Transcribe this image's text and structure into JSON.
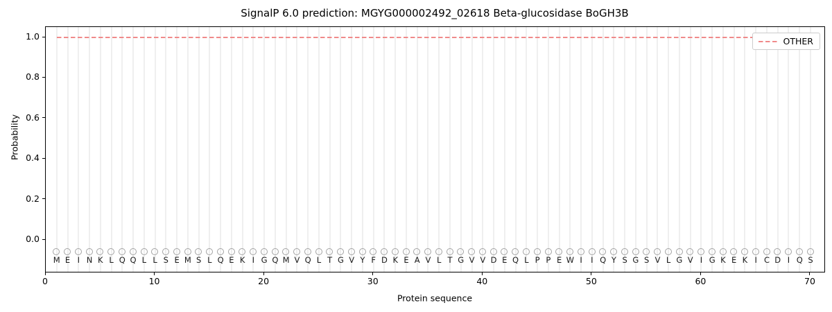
{
  "figure": {
    "title": "SignalP 6.0 prediction: MGYG000002492_02618 Beta-glucosidase BoGH3B"
  },
  "axes": {
    "x_label": "Protein sequence",
    "y_label": "Probability",
    "x_ticks": [
      "0",
      "10",
      "20",
      "30",
      "40",
      "50",
      "60",
      "70"
    ],
    "y_ticks": [
      "0.0",
      "0.2",
      "0.4",
      "0.6",
      "0.8",
      "1.0"
    ]
  },
  "legend": {
    "items": [
      {
        "label": "OTHER",
        "line_style": "dashed",
        "color": "#f08a8a"
      }
    ]
  },
  "colors": {
    "prediction_line": "#f08a8a",
    "gridline": "#efefef",
    "marker_stroke": "#a3a3a3",
    "spine": "#000000",
    "text": "#000000"
  },
  "chart_data": {
    "type": "line",
    "title": "SignalP 6.0 prediction: MGYG000002492_02618 Beta-glucosidase BoGH3B",
    "xlabel": "Protein sequence",
    "ylabel": "Probability",
    "xlim": [
      0,
      71.4
    ],
    "ylim": [
      -0.16,
      1.05
    ],
    "grid": "vertical gridline at each residue position",
    "legend_position": "upper right",
    "x": [
      1,
      2,
      3,
      4,
      5,
      6,
      7,
      8,
      9,
      10,
      11,
      12,
      13,
      14,
      15,
      16,
      17,
      18,
      19,
      20,
      21,
      22,
      23,
      24,
      25,
      26,
      27,
      28,
      29,
      30,
      31,
      32,
      33,
      34,
      35,
      36,
      37,
      38,
      39,
      40,
      41,
      42,
      43,
      44,
      45,
      46,
      47,
      48,
      49,
      50,
      51,
      52,
      53,
      54,
      55,
      56,
      57,
      58,
      59,
      60,
      61,
      62,
      63,
      64,
      65,
      66,
      67,
      68,
      69,
      70
    ],
    "series": [
      {
        "name": "OTHER",
        "linestyle": "dashed",
        "color": "#f08a8a",
        "values": [
          1.0,
          1.0,
          1.0,
          1.0,
          1.0,
          1.0,
          1.0,
          1.0,
          1.0,
          1.0,
          1.0,
          1.0,
          1.0,
          1.0,
          1.0,
          1.0,
          1.0,
          1.0,
          1.0,
          1.0,
          1.0,
          1.0,
          1.0,
          1.0,
          1.0,
          1.0,
          1.0,
          1.0,
          1.0,
          1.0,
          1.0,
          1.0,
          1.0,
          1.0,
          1.0,
          1.0,
          1.0,
          1.0,
          1.0,
          1.0,
          1.0,
          1.0,
          1.0,
          1.0,
          1.0,
          1.0,
          1.0,
          1.0,
          1.0,
          1.0,
          1.0,
          1.0,
          1.0,
          1.0,
          1.0,
          1.0,
          1.0,
          1.0,
          1.0,
          1.0,
          1.0,
          1.0,
          1.0,
          1.0,
          1.0,
          1.0,
          1.0,
          1.0,
          1.0,
          1.0
        ]
      }
    ],
    "sequence": "MEINKLQQLLSEMSLQEKIGQMVQLTGVYFDKEAVLTGVVDEQLPPEWIIQYSGSVLGVIGKEKICDIQS",
    "residue_markers": {
      "symbol": "open-circle",
      "y": -0.06,
      "fill": "none",
      "edge_color": "#a3a3a3"
    },
    "sequence_row_y": -0.1
  }
}
